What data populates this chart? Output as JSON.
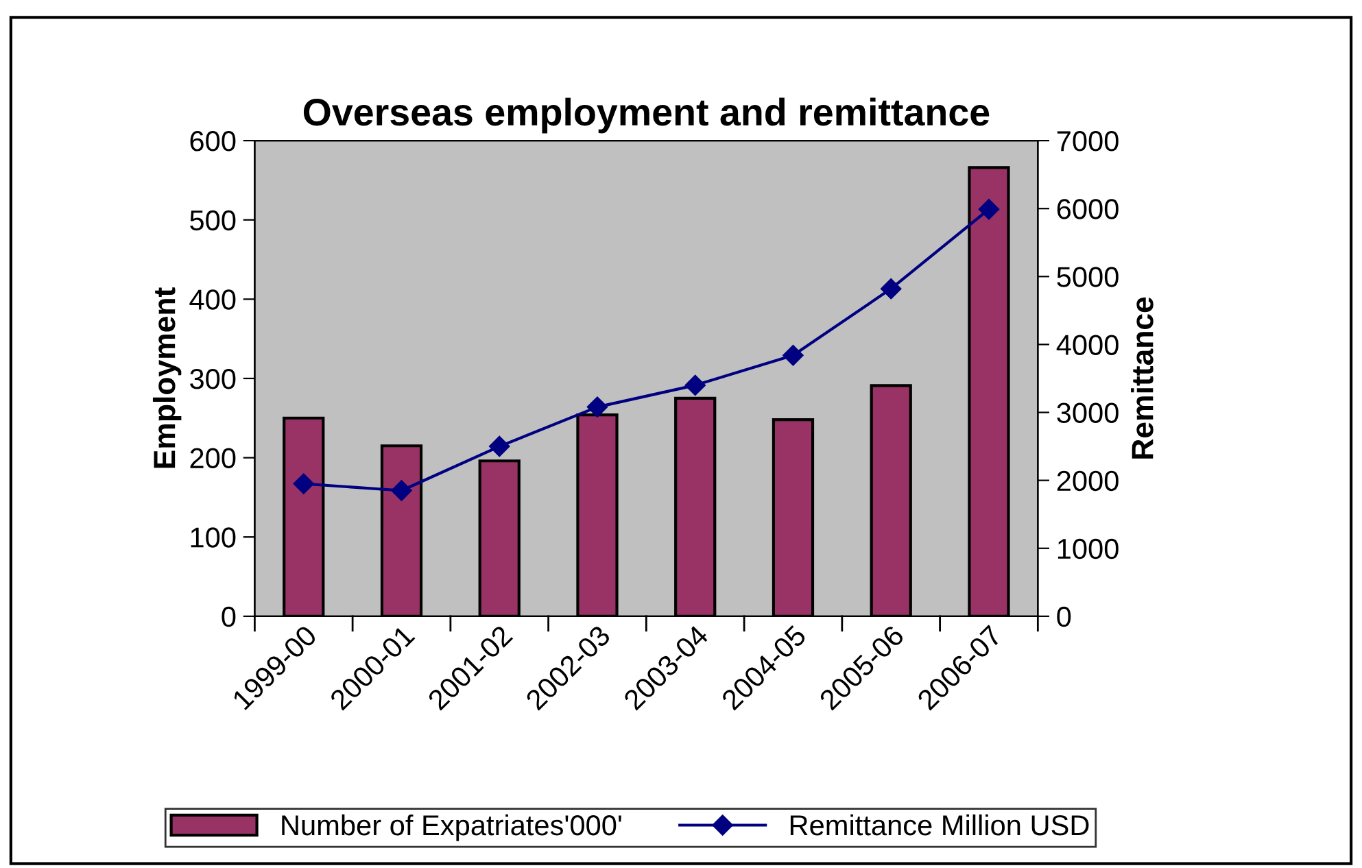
{
  "chart_data": {
    "type": "bar",
    "title": "Overseas employment and remittance",
    "ylabel": "Employment",
    "y2label": "Remittance",
    "categories": [
      "1999-00",
      "2000-01",
      "2001-02",
      "2002-03",
      "2003-04",
      "2004-05",
      "2005-06",
      "2006-07"
    ],
    "series": [
      {
        "name": "Number of Expatriates'000'",
        "color": "#993366",
        "values": [
          250,
          215,
          196,
          254,
          275,
          248,
          291,
          566
        ]
      },
      {
        "name": "Remittance Million USD",
        "type": "line",
        "axis": "y2",
        "color": "#000080",
        "marker": "diamond",
        "values": [
          1950,
          1850,
          2500,
          3080,
          3400,
          3840,
          4820,
          5990
        ]
      }
    ],
    "ylim": [
      0,
      600
    ],
    "yticks": [
      0,
      100,
      200,
      300,
      400,
      500,
      600
    ],
    "y2lim": [
      0,
      7000
    ],
    "y2ticks": [
      0,
      1000,
      2000,
      3000,
      4000,
      5000,
      6000,
      7000
    ],
    "grid": false,
    "legend": "bottom"
  }
}
